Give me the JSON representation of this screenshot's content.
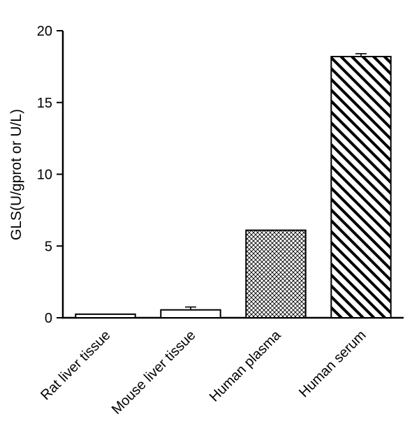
{
  "chart_data": {
    "type": "bar",
    "title": "",
    "xlabel": "",
    "ylabel": "GLS(U/gprot or U/L)",
    "categories": [
      "Rat liver tissue",
      "Mouse liver tissue",
      "Human plasma",
      "Human serum"
    ],
    "values": [
      0.25,
      0.55,
      6.1,
      18.2
    ],
    "errors": [
      0,
      0.2,
      0,
      0.2
    ],
    "patterns": [
      "plain",
      "plain",
      "crosshatch",
      "diagonal"
    ],
    "ylim": [
      0,
      20
    ],
    "yticks": [
      0,
      5,
      10,
      15,
      20
    ],
    "grid": "off",
    "legend": "none",
    "colors": {
      "axis": "#000000",
      "bar_fill": "#ffffff",
      "bar_outline": "#000000",
      "background": "#ffffff"
    }
  }
}
